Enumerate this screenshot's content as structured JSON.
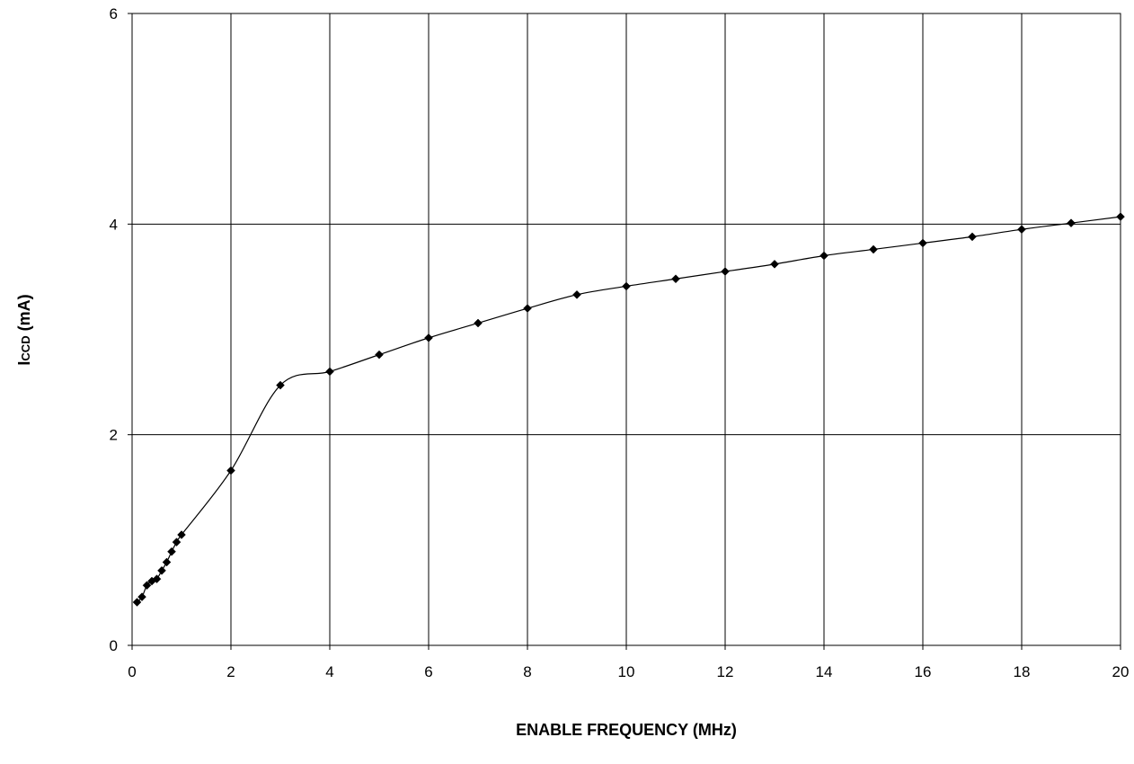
{
  "chart_data": {
    "type": "line",
    "title": "",
    "xlabel": "ENABLE FREQUENCY (MHz)",
    "ylabel": {
      "main": "I",
      "subscript": "CCD",
      "unit": " (mA)"
    },
    "xlim": [
      0,
      20
    ],
    "ylim": [
      0,
      6
    ],
    "xticks": [
      0,
      2,
      4,
      6,
      8,
      10,
      12,
      14,
      16,
      18,
      20
    ],
    "yticks": [
      0,
      2,
      4,
      6
    ],
    "grid": true,
    "legend": "none",
    "line_color": "#000000",
    "marker": "diamond",
    "series": [
      {
        "x": [
          0.1,
          0.2,
          0.3,
          0.4,
          0.5,
          0.6,
          0.7,
          0.8,
          0.9,
          1.0,
          2,
          3,
          4,
          5,
          6,
          7,
          8,
          9,
          10,
          11,
          12,
          13,
          14,
          15,
          16,
          17,
          18,
          19,
          20
        ],
        "values": [
          0.41,
          0.46,
          0.57,
          0.61,
          0.63,
          0.71,
          0.79,
          0.89,
          0.98,
          1.05,
          1.66,
          2.47,
          2.6,
          2.76,
          2.92,
          3.06,
          3.2,
          3.33,
          3.41,
          3.48,
          3.55,
          3.62,
          3.7,
          3.76,
          3.82,
          3.88,
          3.95,
          4.01,
          4.07
        ]
      }
    ]
  }
}
